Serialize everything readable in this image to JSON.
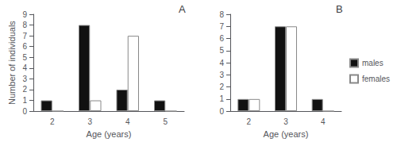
{
  "chart_data": [
    {
      "type": "bar",
      "title": "A",
      "xlabel": "Age (years)",
      "ylabel": "Number of individuals",
      "categories": [
        "2",
        "3",
        "4",
        "5"
      ],
      "series": [
        {
          "color": "#111111",
          "values": [
            1,
            8,
            2,
            1
          ]
        },
        {
          "color": "#ffffff",
          "values": [
            0,
            1,
            7,
            0
          ]
        }
      ],
      "ylim": [
        0,
        9
      ],
      "yticks": [
        0,
        1,
        2,
        3,
        4,
        5,
        6,
        7,
        8,
        9
      ],
      "grid": false
    },
    {
      "type": "bar",
      "title": "B",
      "xlabel": "Age (years)",
      "categories": [
        "2",
        "3",
        "4"
      ],
      "series": [
        {
          "name": "males",
          "color": "#111111",
          "values": [
            1,
            7,
            1
          ]
        },
        {
          "name": "females",
          "color": "#ffffff",
          "values": [
            1,
            7,
            0
          ]
        }
      ],
      "ylim": [
        0,
        8
      ],
      "yticks": [
        0,
        1,
        2,
        3,
        4,
        5,
        6,
        7,
        8
      ],
      "grid": false,
      "legend": "right"
    }
  ]
}
